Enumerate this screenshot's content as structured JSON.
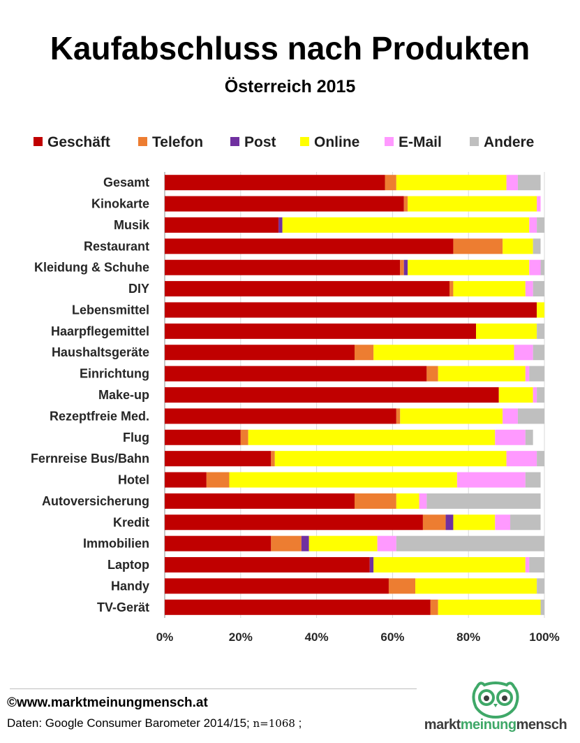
{
  "header": {
    "title": "Kaufabschluss nach Produkten",
    "subtitle": "Österreich 2015"
  },
  "legend": [
    {
      "label": "Geschäft",
      "color": "#c00000"
    },
    {
      "label": "Telefon",
      "color": "#ed7d31"
    },
    {
      "label": "Post",
      "color": "#7030a0"
    },
    {
      "label": "Online",
      "color": "#ffff00"
    },
    {
      "label": "E-Mail",
      "color": "#ff99ff"
    },
    {
      "label": "Andere",
      "color": "#bfbfbf"
    }
  ],
  "chart_data": {
    "type": "bar",
    "orientation": "horizontal",
    "stacked": true,
    "title": "Kaufabschluss nach Produkten",
    "subtitle": "Österreich 2015",
    "xlim": [
      0,
      100
    ],
    "x_ticks": [
      "0%",
      "20%",
      "40%",
      "60%",
      "80%",
      "100%"
    ],
    "legend_position": "top",
    "grid": "vertical",
    "categories": [
      "Gesamt",
      "Kinokarte",
      "Musik",
      "Restaurant",
      "Kleidung & Schuhe",
      "DIY",
      "Lebensmittel",
      "Haarpflegemittel",
      "Haushaltsgeräte",
      "Einrichtung",
      "Make-up",
      "Rezeptfreie Med.",
      "Flug",
      "Fernreise Bus/Bahn",
      "Hotel",
      "Autoversicherung",
      "Kredit",
      "Immobilien",
      "Laptop",
      "Handy",
      "TV-Gerät"
    ],
    "series": [
      {
        "name": "Geschäft",
        "color": "#c00000",
        "values": [
          58,
          63,
          30,
          76,
          62,
          75,
          98,
          82,
          50,
          69,
          88,
          61,
          20,
          28,
          11,
          50,
          68,
          28,
          54,
          59,
          70
        ]
      },
      {
        "name": "Telefon",
        "color": "#ed7d31",
        "values": [
          3,
          1,
          0,
          13,
          1,
          1,
          0,
          0,
          5,
          3,
          0,
          1,
          2,
          1,
          6,
          11,
          6,
          8,
          0,
          7,
          2
        ]
      },
      {
        "name": "Post",
        "color": "#7030a0",
        "values": [
          0,
          0,
          1,
          0,
          1,
          0,
          0,
          0,
          0,
          0,
          0,
          0,
          0,
          0,
          0,
          0,
          2,
          2,
          1,
          0,
          0
        ]
      },
      {
        "name": "Online",
        "color": "#ffff00",
        "values": [
          29,
          34,
          65,
          8,
          32,
          19,
          2,
          16,
          37,
          23,
          9,
          27,
          65,
          61,
          60,
          6,
          11,
          18,
          40,
          32,
          27
        ]
      },
      {
        "name": "E-Mail",
        "color": "#ff99ff",
        "values": [
          3,
          1,
          2,
          0,
          3,
          2,
          0,
          0,
          5,
          1,
          1,
          4,
          8,
          8,
          18,
          2,
          4,
          5,
          1,
          0,
          0
        ]
      },
      {
        "name": "Andere",
        "color": "#bfbfbf",
        "values": [
          6,
          0,
          2,
          2,
          1,
          3,
          0,
          2,
          3,
          4,
          2,
          7,
          2,
          2,
          4,
          30,
          8,
          39,
          4,
          2,
          1
        ]
      }
    ]
  },
  "footer": {
    "website": "©www.marktmeinungmensch.at",
    "source": "Daten: Google Consumer Barometer 2014/15;",
    "sample": "n=1068",
    "sample_sep": ";"
  },
  "logo": {
    "left": "markt",
    "middle": "meinung",
    "right": "mensch",
    "icon": "owl-icon"
  }
}
